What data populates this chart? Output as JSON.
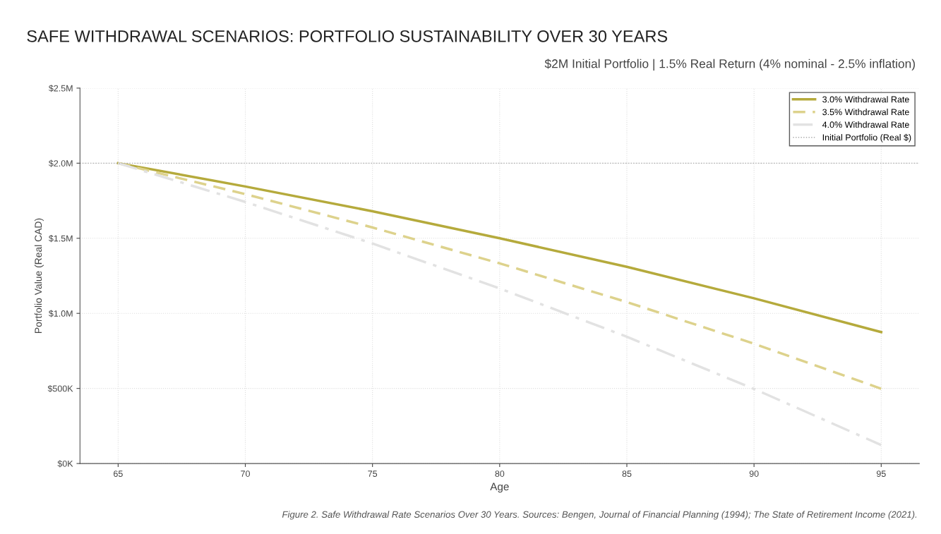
{
  "chart_data": {
    "type": "line",
    "title": "SAFE WITHDRAWAL SCENARIOS: PORTFOLIO SUSTAINABILITY OVER 30 YEARS",
    "subtitle": "$2M Initial Portfolio | 1.5% Real Return (4% nominal - 2.5% inflation)",
    "xlabel": "Age",
    "ylabel": "Portfolio Value (Real CAD)",
    "x": [
      65,
      70,
      75,
      80,
      85,
      90,
      95
    ],
    "series": [
      {
        "name": "3.0% Withdrawal Rate",
        "color": "#b5aa3c",
        "line_style": "solid",
        "values": [
          2000000,
          1845000,
          1680000,
          1500000,
          1310000,
          1100000,
          875000
        ]
      },
      {
        "name": "3.5% Withdrawal Rate",
        "color": "#ddd28c",
        "line_style": "dashed",
        "values": [
          2000000,
          1794000,
          1572000,
          1333000,
          1075000,
          798000,
          498000
        ]
      },
      {
        "name": "4.0% Withdrawal Rate",
        "color": "#e2e2e2",
        "line_style": "dashdot",
        "values": [
          2000000,
          1742000,
          1465000,
          1166000,
          844000,
          497000,
          123000
        ]
      }
    ],
    "ref_lines": [
      {
        "axis": "y",
        "value": 2000000,
        "label": "Initial Portfolio (Real $)",
        "color": "#aaaaaa",
        "line_style": "dotted"
      }
    ],
    "xlim": [
      63.5,
      96.5
    ],
    "xticks": [
      65,
      70,
      75,
      80,
      85,
      90,
      95
    ],
    "ylim": [
      0,
      2500000
    ],
    "yticks": [
      {
        "value": 0,
        "label": "$0K"
      },
      {
        "value": 500000,
        "label": "$500K"
      },
      {
        "value": 1000000,
        "label": "$1.0M"
      },
      {
        "value": 1500000,
        "label": "$1.5M"
      },
      {
        "value": 2000000,
        "label": "$2.0M"
      },
      {
        "value": 2500000,
        "label": "$2.5M"
      }
    ],
    "grid": true,
    "legend": "top right",
    "marker": "none",
    "annotations": [
      "Figure 2. Safe Withdrawal Rate Scenarios Over 30 Years. Sources: Bengen, Journal of Financial Planning (1994); The State of Retirement Income (2021)."
    ]
  }
}
